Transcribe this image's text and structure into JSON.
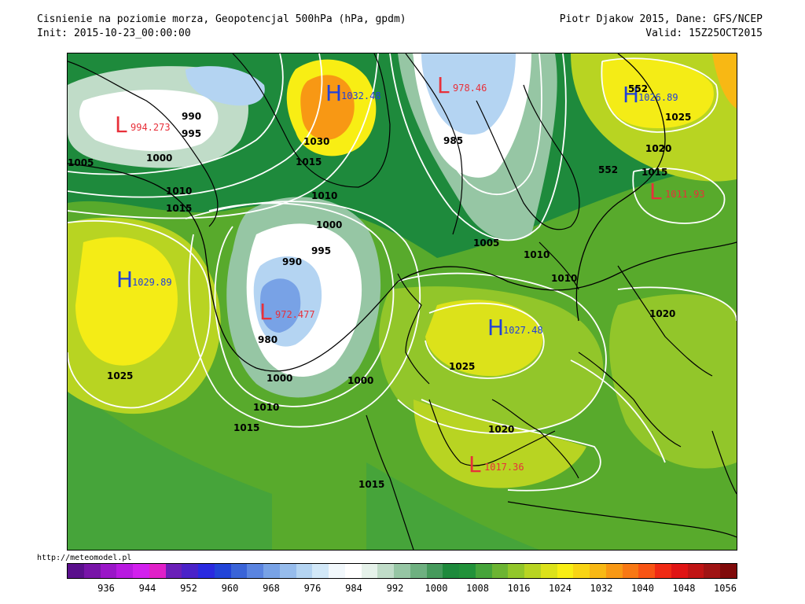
{
  "header": {
    "title": "Cisnienie na poziomie morza, Geopotencjal 500hPa (hPa, gpdm)",
    "init": "Init: 2015-10-23_00:00:00",
    "author": "Piotr Djakow 2015, Dane: GFS/NCEP",
    "valid": "Valid: 15Z25OCT2015"
  },
  "footer": {
    "site": "http://meteomodel.pl"
  },
  "legend": {
    "colors": [
      "#5a0f8c",
      "#7814a8",
      "#9a16c8",
      "#b81ae0",
      "#d220ee",
      "#e020c8",
      "#6a1fb8",
      "#4a22c8",
      "#2a2ae0",
      "#2244d8",
      "#3a64d8",
      "#5a84e0",
      "#78a2e6",
      "#96bcec",
      "#b4d4f2",
      "#d2e8f8",
      "#f2f8fc",
      "#ffffff",
      "#e6f2ea",
      "#c0dcc8",
      "#96c6a4",
      "#6eb080",
      "#469a5c",
      "#1e8a3c",
      "#22923a",
      "#46a43a",
      "#6cb432",
      "#92c62a",
      "#b8d422",
      "#dce21a",
      "#f8ee14",
      "#f8d414",
      "#f8b814",
      "#f89814",
      "#f87814",
      "#f85414",
      "#f02a14",
      "#e01414",
      "#c01414",
      "#a01414",
      "#800a0a"
    ],
    "labels": [
      "936",
      "944",
      "952",
      "960",
      "968",
      "976",
      "984",
      "992",
      "1000",
      "1008",
      "1016",
      "1024",
      "1032",
      "1040",
      "1048",
      "1056"
    ]
  },
  "centers": [
    {
      "type": "L",
      "value": "994.273",
      "color": "#e8303a"
    },
    {
      "type": "H",
      "value": "1032.48",
      "color": "#2040d8"
    },
    {
      "type": "L",
      "value": "978.46",
      "color": "#e8303a"
    },
    {
      "type": "H",
      "value": "1026.89",
      "color": "#2040d8"
    },
    {
      "type": "L",
      "value": "1011.93",
      "color": "#e8303a"
    },
    {
      "type": "H",
      "value": "1029.89",
      "color": "#2040d8"
    },
    {
      "type": "L",
      "value": "972.477",
      "color": "#e8303a"
    },
    {
      "type": "H",
      "value": "1027.48",
      "color": "#2040d8"
    },
    {
      "type": "L",
      "value": "1017.36",
      "color": "#e8303a"
    }
  ],
  "isobar_labels": [
    "990",
    "995",
    "1000",
    "1005",
    "1010",
    "1015",
    "1030",
    "1015",
    "1010",
    "985",
    "1000",
    "1005",
    "1010",
    "1010",
    "990",
    "995",
    "1000",
    "980",
    "1000",
    "1010",
    "1015",
    "1025",
    "1025",
    "1015",
    "1020",
    "1020",
    "1020",
    "1025",
    "1015",
    "1020",
    "552",
    "552"
  ]
}
